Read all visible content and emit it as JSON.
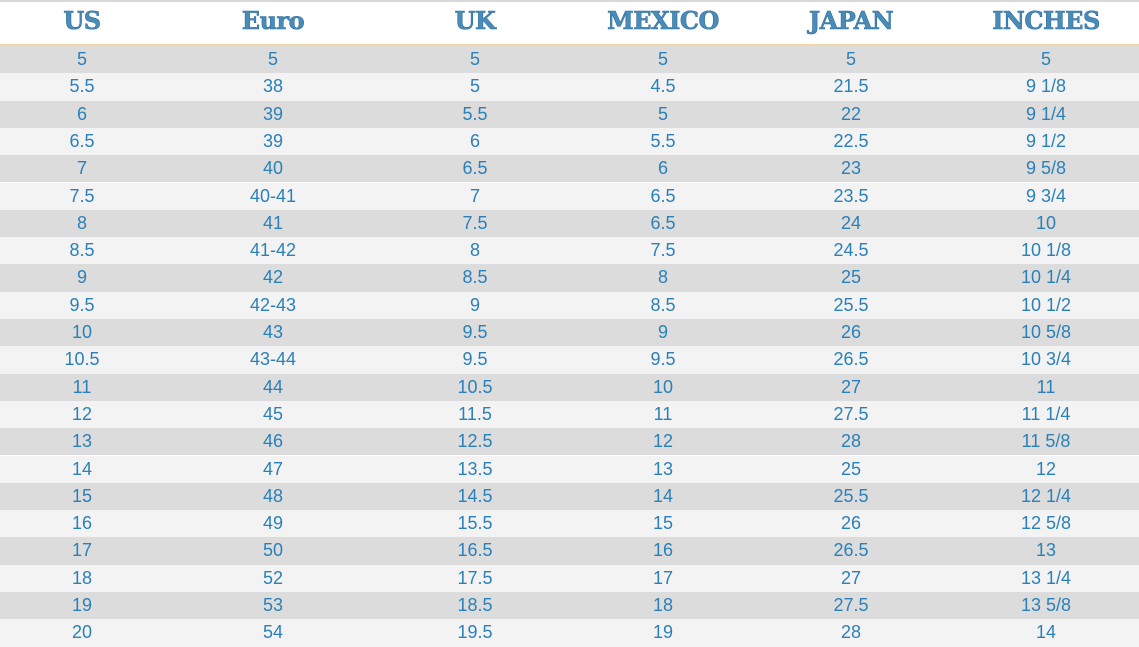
{
  "table": {
    "header": [
      "US",
      "Euro",
      "UK",
      "MEXICO",
      "JAPAN",
      "INCHES"
    ],
    "rows": [
      [
        "5",
        "5",
        "5",
        "5",
        "5",
        "5"
      ],
      [
        "5.5",
        "38",
        "5",
        "4.5",
        "21.5",
        "9 1/8"
      ],
      [
        "6",
        "39",
        "5.5",
        "5",
        "22",
        "9 1/4"
      ],
      [
        "6.5",
        "39",
        "6",
        "5.5",
        "22.5",
        "9 1/2"
      ],
      [
        "7",
        "40",
        "6.5",
        "6",
        "23",
        "9 5/8"
      ],
      [
        "7.5",
        "40-41",
        "7",
        "6.5",
        "23.5",
        "9 3/4"
      ],
      [
        "8",
        "41",
        "7.5",
        "6.5",
        "24",
        "10"
      ],
      [
        "8.5",
        "41-42",
        "8",
        "7.5",
        "24.5",
        "10 1/8"
      ],
      [
        "9",
        "42",
        "8.5",
        "8",
        "25",
        "10 1/4"
      ],
      [
        "9.5",
        "42-43",
        "9",
        "8.5",
        "25.5",
        "10 1/2"
      ],
      [
        "10",
        "43",
        "9.5",
        "9",
        "26",
        "10 5/8"
      ],
      [
        "10.5",
        "43-44",
        "9.5",
        "9.5",
        "26.5",
        "10 3/4"
      ],
      [
        "11",
        "44",
        "10.5",
        "10",
        "27",
        "11"
      ],
      [
        "12",
        "45",
        "11.5",
        "11",
        "27.5",
        "11 1/4"
      ],
      [
        "13",
        "46",
        "12.5",
        "12",
        "28",
        "11 5/8"
      ],
      [
        "14",
        "47",
        "13.5",
        "13",
        "25",
        "12"
      ],
      [
        "15",
        "48",
        "14.5",
        "14",
        "25.5",
        "12 1/4"
      ],
      [
        "16",
        "49",
        "15.5",
        "15",
        "26",
        "12 5/8"
      ],
      [
        "17",
        "50",
        "16.5",
        "16",
        "26.5",
        "13"
      ],
      [
        "18",
        "52",
        "17.5",
        "17",
        "27",
        "13 1/4"
      ],
      [
        "19",
        "53",
        "18.5",
        "18",
        "27.5",
        "13 5/8"
      ],
      [
        "20",
        "54",
        "19.5",
        "19",
        "28",
        "14"
      ]
    ]
  }
}
